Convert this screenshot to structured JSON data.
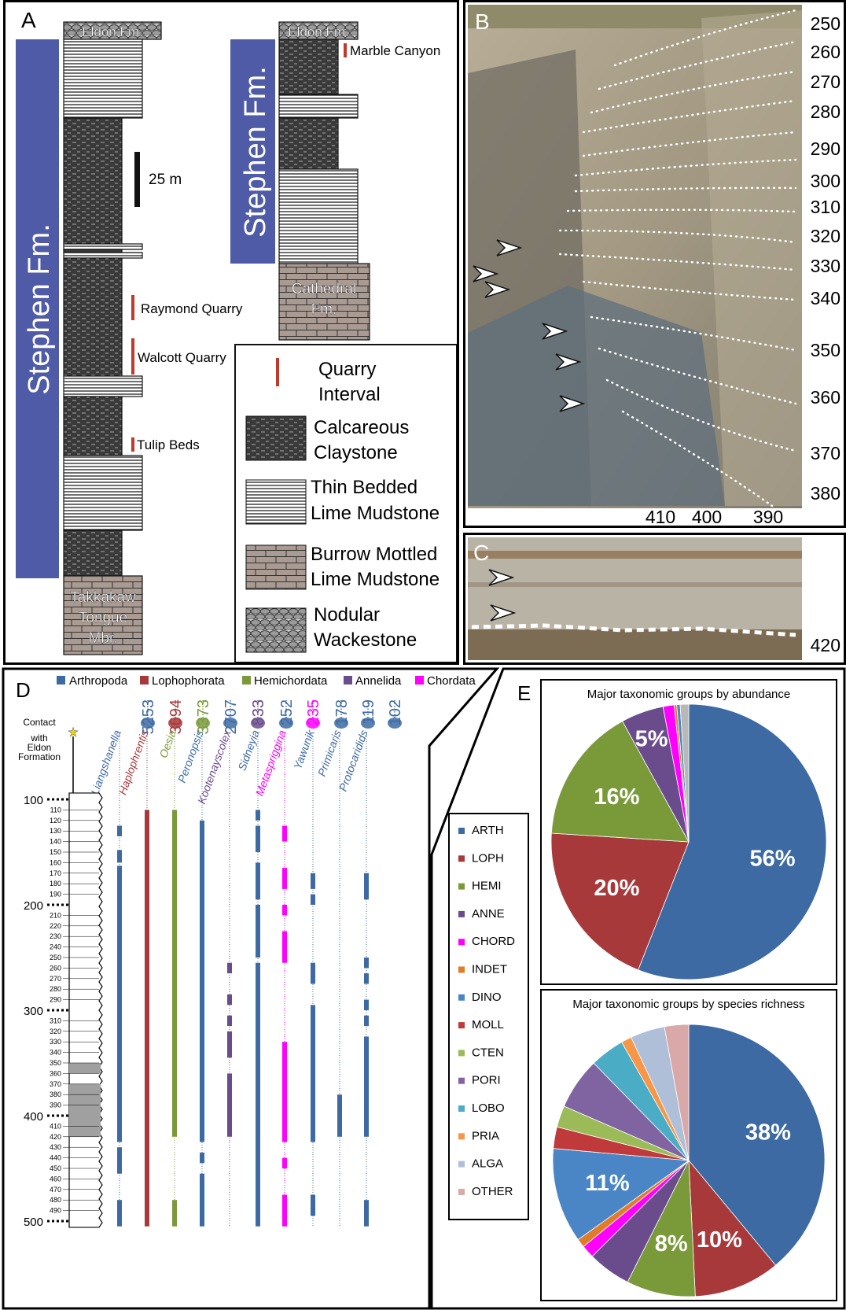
{
  "panel_a": {
    "letter": "A",
    "left_column": {
      "formation": "Stephen Fm.",
      "top_unit": "Eldon Fm.",
      "base_unit": "Takkakaw Tongue Mbr.",
      "scale_label": "25 m",
      "quarries": [
        "Raymond Quarry",
        "Walcott Quarry",
        "Tulip Beds"
      ]
    },
    "right_column": {
      "formation": "Stephen Fm.",
      "top_unit": "Eldon Fm.",
      "base_unit": "Cathedral Fm.",
      "quarry": "Marble Canyon"
    },
    "legend": [
      {
        "key": "quarry",
        "lines": [
          "Quarry",
          "Interval"
        ]
      },
      {
        "key": "claystone",
        "lines": [
          "Calcareous",
          "Claystone"
        ]
      },
      {
        "key": "thin",
        "lines": [
          "Thin Bedded",
          "Lime Mudstone"
        ]
      },
      {
        "key": "burrow",
        "lines": [
          "Burrow Mottled",
          "Lime Mudstone"
        ]
      },
      {
        "key": "nodular",
        "lines": [
          "Nodular",
          "Wackestone"
        ]
      }
    ]
  },
  "panel_b": {
    "letter": "B",
    "right_labels": [
      "250",
      "260",
      "270",
      "280",
      "290",
      "300",
      "310",
      "320",
      "330",
      "340",
      "350",
      "360",
      "370",
      "380"
    ],
    "bottom_labels": [
      "410",
      "400",
      "390"
    ]
  },
  "panel_c": {
    "letter": "C",
    "label": "420"
  },
  "panel_d": {
    "letter": "D",
    "legend": [
      {
        "name": "Arthropoda",
        "color": "#3d6aa3"
      },
      {
        "name": "Lophophorata",
        "color": "#a8393b"
      },
      {
        "name": "Hemichordata",
        "color": "#7a9a3a"
      },
      {
        "name": "Annelida",
        "color": "#6a4c8c"
      },
      {
        "name": "Chordata",
        "color": "#ff00ff"
      }
    ],
    "contact_label": [
      "Contact",
      "with",
      "Eldon",
      "Formation"
    ],
    "depth_major": [
      "100",
      "200",
      "300",
      "400",
      "500"
    ],
    "depth_minor": [
      "110",
      "120",
      "130",
      "140",
      "150",
      "160",
      "170",
      "180",
      "190",
      "210",
      "220",
      "230",
      "240",
      "250",
      "260",
      "270",
      "280",
      "290",
      "310",
      "320",
      "330",
      "340",
      "350",
      "360",
      "370",
      "380",
      "390",
      "410",
      "420",
      "430",
      "440",
      "450",
      "460",
      "470",
      "480",
      "490"
    ],
    "taxa": [
      {
        "name": "Liangshanella",
        "count": "5253",
        "color": "#3d6aa3"
      },
      {
        "name": "Haplophrentis",
        "count": "3694",
        "color": "#a8393b"
      },
      {
        "name": "Oesia",
        "count": "3373",
        "color": "#7a9a3a"
      },
      {
        "name": "Peronopsis",
        "count": "2707",
        "color": "#3d6aa3"
      },
      {
        "name": "Kootenayscolex",
        "count": "833",
        "color": "#6a4c8c"
      },
      {
        "name": "Sidneyia",
        "count": "252",
        "color": "#3d6aa3"
      },
      {
        "name": "Metaspriggina",
        "count": "235",
        "color": "#ff00ff"
      },
      {
        "name": "Yawunik",
        "count": "178",
        "color": "#3d6aa3"
      },
      {
        "name": "Primicaris",
        "count": "119",
        "color": "#3d6aa3"
      },
      {
        "name": "Protocaridids",
        "count": "102",
        "color": "#3d6aa3"
      }
    ]
  },
  "panel_e": {
    "letter": "E",
    "legend": [
      {
        "code": "ARTH",
        "color": "#3d6aa3"
      },
      {
        "code": "LOPH",
        "color": "#a8393b"
      },
      {
        "code": "HEMI",
        "color": "#7a9a3a"
      },
      {
        "code": "ANNE",
        "color": "#6a4c8c"
      },
      {
        "code": "CHORD",
        "color": "#ff00ff"
      },
      {
        "code": "INDET",
        "color": "#e07b2a"
      },
      {
        "code": "DINO",
        "color": "#4a86c5"
      },
      {
        "code": "MOLL",
        "color": "#c0393b"
      },
      {
        "code": "CTEN",
        "color": "#9bbb59"
      },
      {
        "code": "PORI",
        "color": "#8064a2"
      },
      {
        "code": "LOBO",
        "color": "#4bacc6"
      },
      {
        "code": "PRIA",
        "color": "#f79646"
      },
      {
        "code": "ALGA",
        "color": "#b0bfd8"
      },
      {
        "code": "OTHER",
        "color": "#d9a8a8"
      }
    ],
    "chart_data": [
      {
        "type": "pie",
        "title": "Major taxonomic groups by abundance",
        "slices": [
          {
            "label": "ARTH",
            "value": 56,
            "color": "#3d6aa3",
            "text": "56%"
          },
          {
            "label": "LOPH",
            "value": 20,
            "color": "#a8393b",
            "text": "20%"
          },
          {
            "label": "HEMI",
            "value": 16,
            "color": "#7a9a3a",
            "text": "16%"
          },
          {
            "label": "ANNE",
            "value": 5,
            "color": "#6a4c8c",
            "text": "5%"
          },
          {
            "label": "CHORD",
            "value": 1.3,
            "color": "#ff00ff",
            "text": ""
          },
          {
            "label": "INDET",
            "value": 0.3,
            "color": "#e07b2a",
            "text": ""
          },
          {
            "label": "DINO",
            "value": 0.4,
            "color": "#4a86c5",
            "text": ""
          },
          {
            "label": "OTHER",
            "value": 1.0,
            "color": "#b8b8b8",
            "text": ""
          }
        ]
      },
      {
        "type": "pie",
        "title": "Major taxonomic groups by species richness",
        "slices": [
          {
            "label": "ARTH",
            "value": 38,
            "color": "#3d6aa3",
            "text": "38%"
          },
          {
            "label": "LOPH",
            "value": 10,
            "color": "#a8393b",
            "text": "10%"
          },
          {
            "label": "HEMI",
            "value": 8,
            "color": "#7a9a3a",
            "text": "8%"
          },
          {
            "label": "ANNE",
            "value": 5,
            "color": "#6a4c8c",
            "text": ""
          },
          {
            "label": "CHORD",
            "value": 1.5,
            "color": "#ff00ff",
            "text": ""
          },
          {
            "label": "INDET",
            "value": 1,
            "color": "#e07b2a",
            "text": ""
          },
          {
            "label": "DINO",
            "value": 11,
            "color": "#4a86c5",
            "text": "11%"
          },
          {
            "label": "MOLL",
            "value": 2.5,
            "color": "#c0393b",
            "text": ""
          },
          {
            "label": "CTEN",
            "value": 2.5,
            "color": "#9bbb59",
            "text": ""
          },
          {
            "label": "PORI",
            "value": 6,
            "color": "#8064a2",
            "text": ""
          },
          {
            "label": "LOBO",
            "value": 4,
            "color": "#4bacc6",
            "text": ""
          },
          {
            "label": "PRIA",
            "value": 1.2,
            "color": "#f79646",
            "text": ""
          },
          {
            "label": "ALGA",
            "value": 4,
            "color": "#b0bfd8",
            "text": ""
          },
          {
            "label": "OTHER",
            "value": 2.8,
            "color": "#d9a8a8",
            "text": ""
          }
        ]
      }
    ]
  }
}
